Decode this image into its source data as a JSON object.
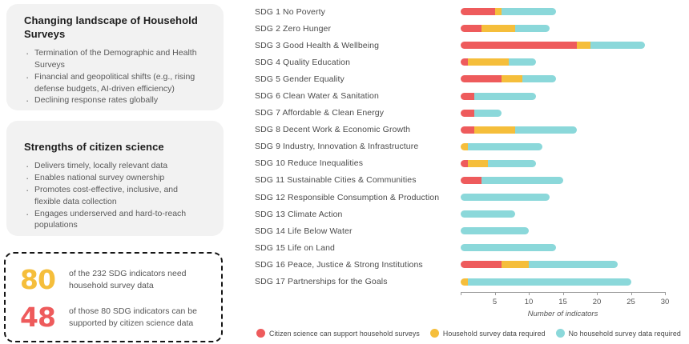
{
  "panels": {
    "landscape": {
      "title": "Changing landscape of Household Surveys",
      "bullets": [
        "Termination of the Demographic and Health Surveys",
        "Financial and geopolitical shifts (e.g., rising defense budgets, AI-driven efficiency)",
        "Declining response rates globally"
      ]
    },
    "strengths": {
      "title": "Strengths of citizen science",
      "bullets": [
        "Delivers timely, locally relevant data",
        "Enables national survey ownership",
        "Promotes cost-effective, inclusive, and flexible data collection",
        "Engages underserved and hard-to-reach populations"
      ]
    }
  },
  "stats": [
    {
      "value": "80",
      "color": "#F5BE3B",
      "text": "of the 232 SDG indicators need household survey data"
    },
    {
      "value": "48",
      "color": "#EE5B5C",
      "text": "of those 80 SDG indicators can be supported by citizen science data"
    }
  ],
  "chart_data": {
    "type": "bar",
    "orientation": "horizontal-stacked",
    "title": "",
    "xlabel": "Number of indicators",
    "ylabel": "",
    "xlim": [
      0,
      30
    ],
    "xticks": [
      5,
      10,
      15,
      20,
      25,
      30
    ],
    "grid": false,
    "legend_position": "bottom",
    "categories": [
      "SDG 1 No Poverty",
      "SDG 2 Zero Hunger",
      "SDG 3 Good Health & Wellbeing",
      "SDG 4 Quality Education",
      "SDG 5 Gender Equality",
      "SDG 6 Clean Water & Sanitation",
      "SDG 7 Affordable & Clean Energy",
      "SDG 8 Decent Work & Economic Growth",
      "SDG 9 Industry, Innovation & Infrastructure",
      "SDG 10 Reduce Inequalities",
      "SDG 11 Sustainable Cities & Communities",
      "SDG 12 Responsible Consumption & Production",
      "SDG 13 Climate Action",
      "SDG 14 Life Below Water",
      "SDG 15 Life on Land",
      "SDG 16 Peace, Justice & Strong Institutions",
      "SDG 17 Partnerships for the Goals"
    ],
    "series": [
      {
        "name": "Citizen science can support household surveys",
        "color": "#EE5B5C",
        "values": [
          5,
          3,
          17,
          1,
          6,
          2,
          2,
          2,
          0,
          1,
          3,
          0,
          0,
          0,
          0,
          6,
          0
        ]
      },
      {
        "name": "Household survey data required",
        "color": "#F5BE3B",
        "values": [
          1,
          5,
          2,
          6,
          3,
          0,
          0,
          6,
          1,
          3,
          0,
          0,
          0,
          0,
          0,
          4,
          1
        ]
      },
      {
        "name": "No household survey data required",
        "color": "#8BD8DA",
        "values": [
          8,
          5,
          8,
          4,
          5,
          9,
          4,
          9,
          11,
          7,
          12,
          13,
          8,
          10,
          14,
          13,
          24
        ]
      }
    ]
  }
}
